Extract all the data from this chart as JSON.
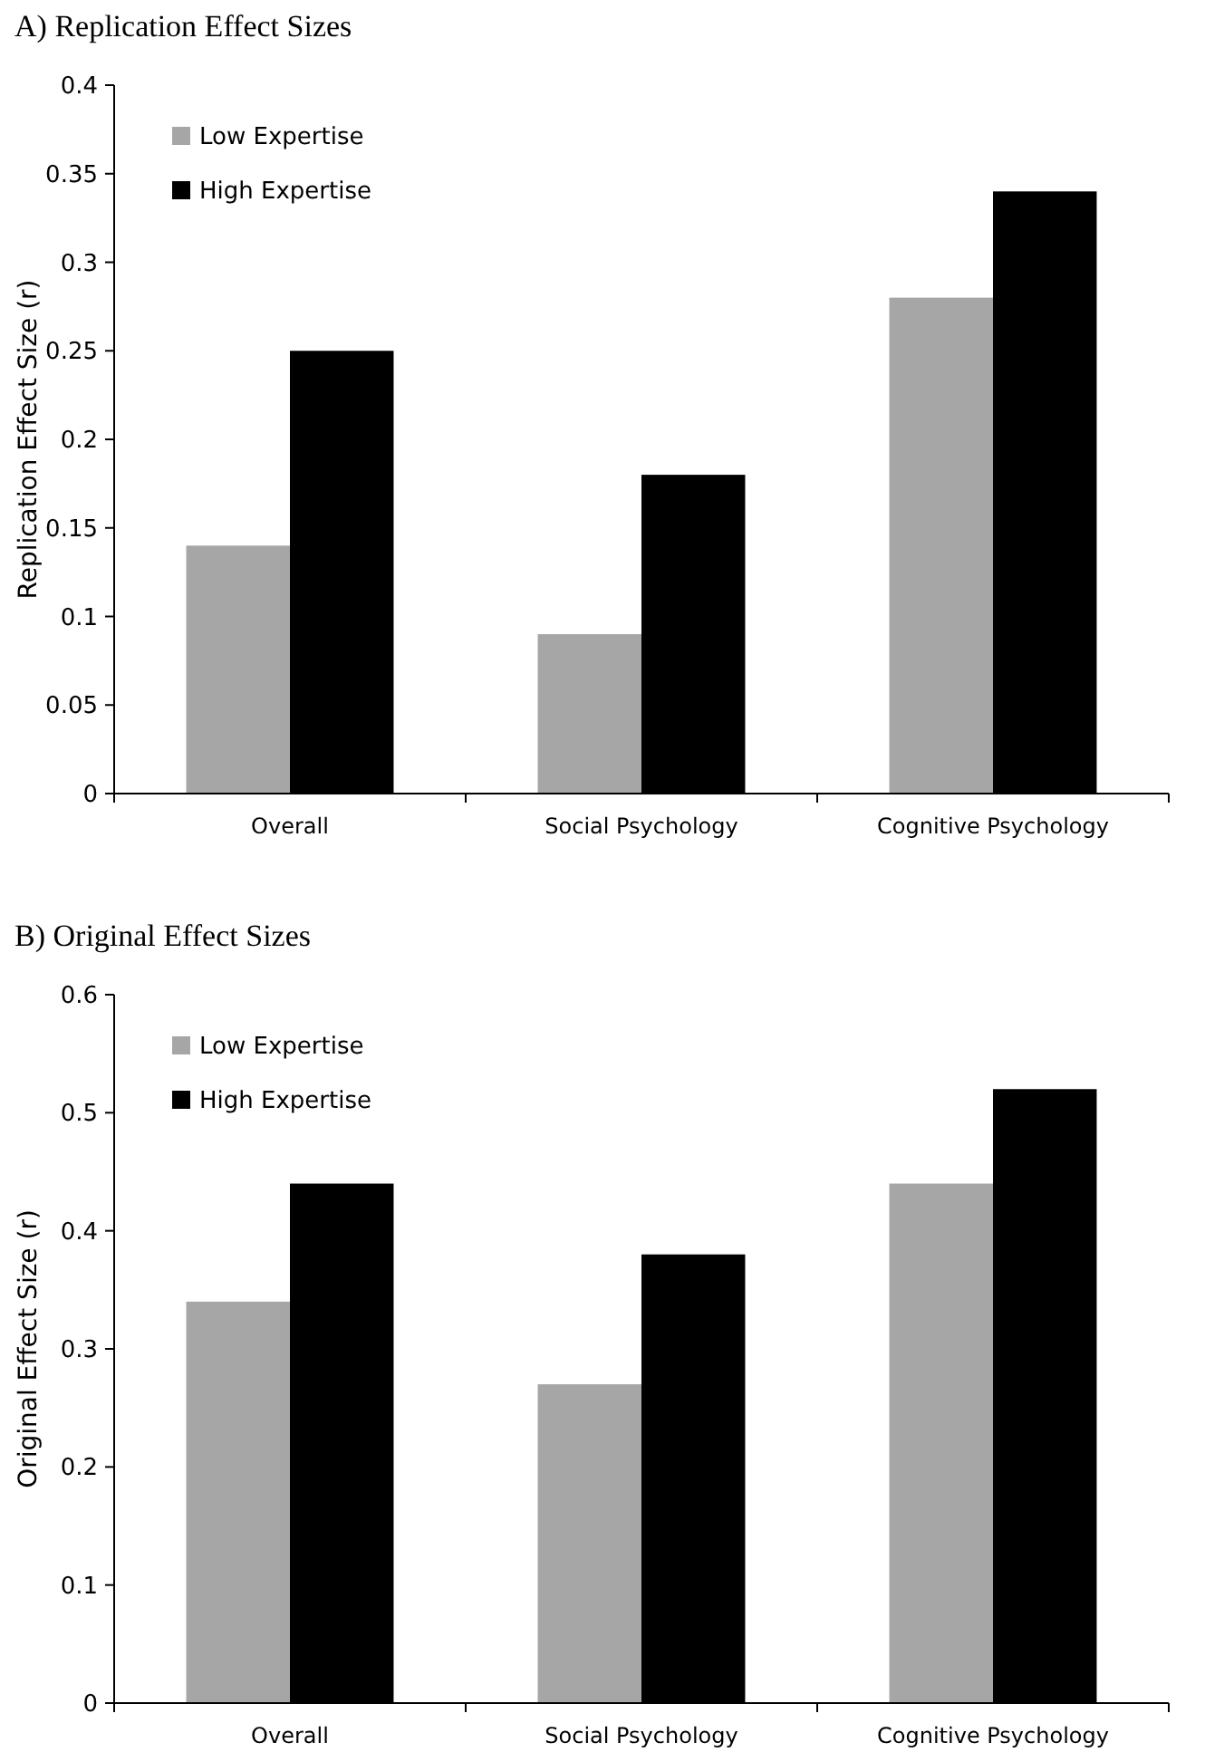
{
  "chart_data": [
    {
      "type": "bar",
      "title": "A) Replication Effect Sizes",
      "ylabel": "Replication Effect Size (r)",
      "categories": [
        "Overall",
        "Social Psychology",
        "Cognitive Psychology"
      ],
      "series": [
        {
          "name": "Low Expertise",
          "color": "#a6a6a6",
          "values": [
            0.14,
            0.09,
            0.28
          ]
        },
        {
          "name": "High Expertise",
          "color": "#000000",
          "values": [
            0.25,
            0.18,
            0.34
          ]
        }
      ],
      "ylim": [
        0,
        0.4
      ],
      "yticks": [
        0,
        0.05,
        0.1,
        0.15,
        0.2,
        0.25,
        0.3,
        0.35,
        0.4
      ],
      "legend": "top left",
      "grid": false
    },
    {
      "type": "bar",
      "title": "B) Original Effect Sizes",
      "ylabel": "Original Effect Size (r)",
      "categories": [
        "Overall",
        "Social Psychology",
        "Cognitive Psychology"
      ],
      "series": [
        {
          "name": "Low Expertise",
          "color": "#a6a6a6",
          "values": [
            0.34,
            0.27,
            0.44
          ]
        },
        {
          "name": "High Expertise",
          "color": "#000000",
          "values": [
            0.44,
            0.38,
            0.52
          ]
        }
      ],
      "ylim": [
        0,
        0.6
      ],
      "yticks": [
        0,
        0.1,
        0.2,
        0.3,
        0.4,
        0.5,
        0.6
      ],
      "legend": "top left",
      "grid": false
    }
  ]
}
